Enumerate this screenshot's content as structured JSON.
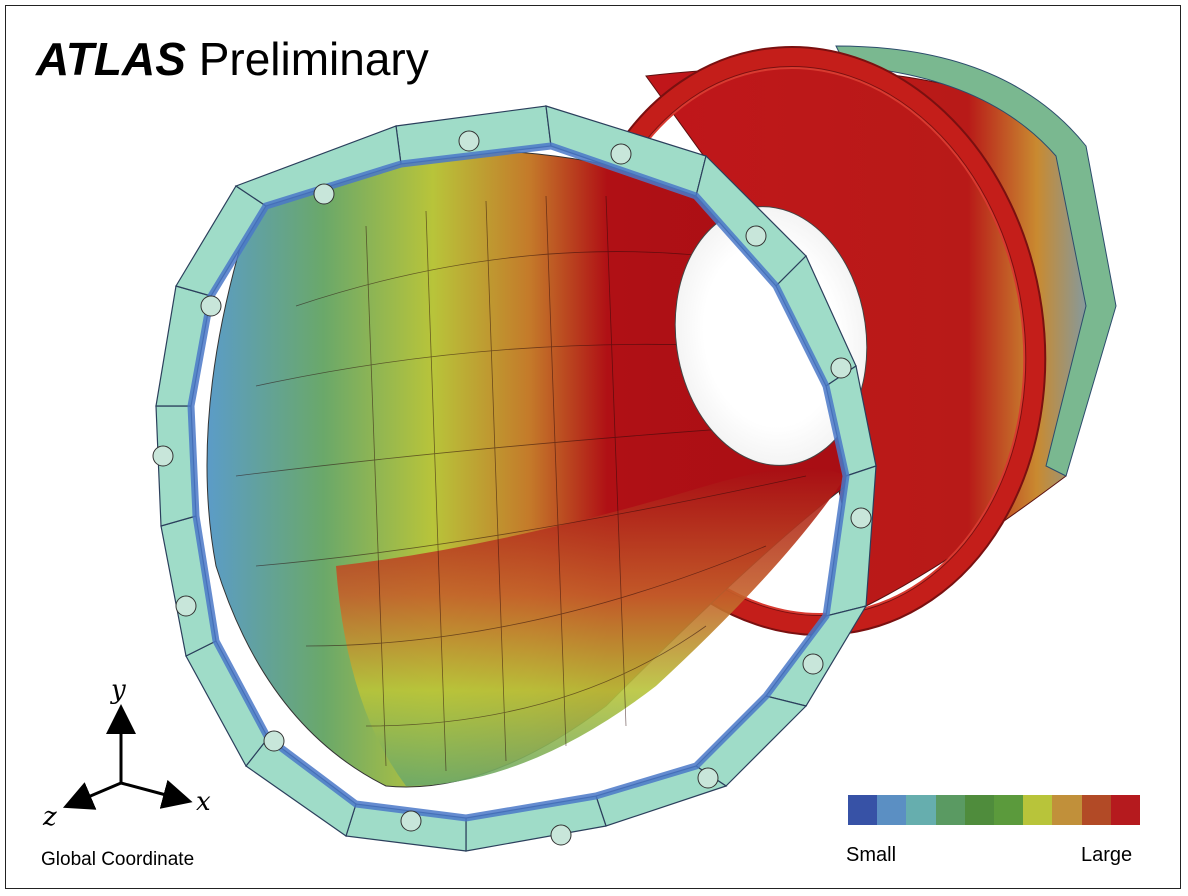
{
  "title": {
    "brand": "ATLAS",
    "suffix": "Preliminary"
  },
  "axes": {
    "y": "y",
    "x": "x",
    "z": "z",
    "caption": "Global Coordinate"
  },
  "scale": {
    "min_label": "Small",
    "max_label": "Large",
    "colors": [
      "#3752a6",
      "#5b8fc3",
      "#66aeae",
      "#5a9a62",
      "#4f8c3c",
      "#5b9a3c",
      "#b8c43a",
      "#c1903a",
      "#b24a26",
      "#b51a1e"
    ]
  },
  "colors": {
    "outer_ring": "#c41e1a",
    "inner_hot": "#b01015",
    "module_teal": "#9fdcc8",
    "module_blue": "#5a8fd3"
  }
}
